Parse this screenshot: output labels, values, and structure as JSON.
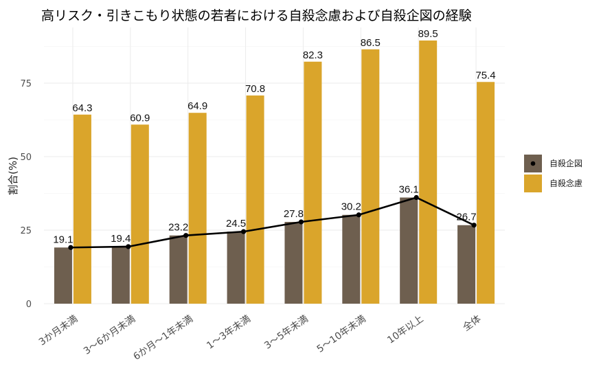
{
  "chart_data": {
    "type": "bar",
    "title": "高リスク・引きこもり状態の若者における自殺念慮および自殺企図の経験",
    "xlabel": "",
    "ylabel": "割合(%)",
    "categories": [
      "3か月未満",
      "3〜6か月未満",
      "6か月〜1年未満",
      "1〜3年未満",
      "3〜5年未満",
      "5〜10年未満",
      "10年以上",
      "全体"
    ],
    "series": [
      {
        "name": "自殺企図",
        "values": [
          19.1,
          19.4,
          23.2,
          24.5,
          27.8,
          30.2,
          36.1,
          26.7
        ],
        "color": "#6e5f4f",
        "line_color": "#000000"
      },
      {
        "name": "自殺念慮",
        "values": [
          64.3,
          60.9,
          64.9,
          70.8,
          82.3,
          86.5,
          89.5,
          75.4
        ],
        "color": "#daa52b"
      }
    ],
    "y_ticks": [
      0,
      25,
      50,
      75
    ],
    "ylim": [
      0,
      93
    ],
    "grid": true,
    "legend_position": "right"
  }
}
